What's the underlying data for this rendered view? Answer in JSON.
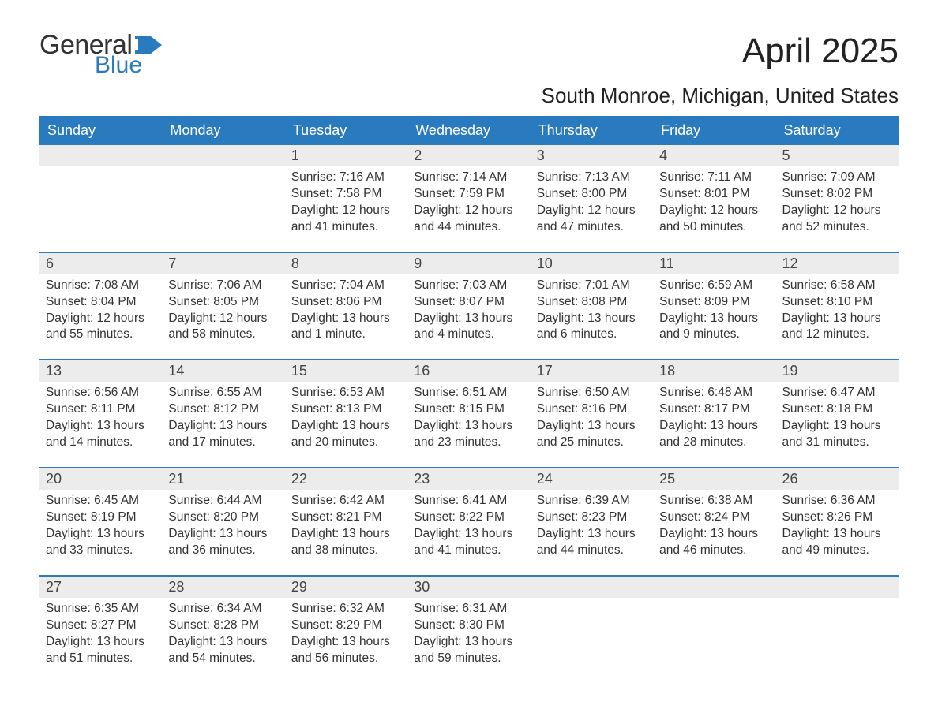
{
  "logo": {
    "text1": "General",
    "text2": "Blue",
    "flag_color": "#2a7ac0"
  },
  "title": "April 2025",
  "location": "South Monroe, Michigan, United States",
  "colors": {
    "header_bg": "#2a7ac0",
    "header_text": "#ffffff",
    "daynum_bg": "#ececec",
    "body_text": "#333333",
    "row_border": "#2a7ac0"
  },
  "fonts": {
    "title_size_pt": 33,
    "location_size_pt": 20,
    "weekday_size_pt": 14,
    "daynum_size_pt": 14,
    "body_size_pt": 12
  },
  "weekdays": [
    "Sunday",
    "Monday",
    "Tuesday",
    "Wednesday",
    "Thursday",
    "Friday",
    "Saturday"
  ],
  "weeks": [
    [
      {
        "day": "",
        "sunrise": "",
        "sunset": "",
        "daylight": ""
      },
      {
        "day": "",
        "sunrise": "",
        "sunset": "",
        "daylight": ""
      },
      {
        "day": "1",
        "sunrise": "Sunrise: 7:16 AM",
        "sunset": "Sunset: 7:58 PM",
        "daylight": "Daylight: 12 hours and 41 minutes."
      },
      {
        "day": "2",
        "sunrise": "Sunrise: 7:14 AM",
        "sunset": "Sunset: 7:59 PM",
        "daylight": "Daylight: 12 hours and 44 minutes."
      },
      {
        "day": "3",
        "sunrise": "Sunrise: 7:13 AM",
        "sunset": "Sunset: 8:00 PM",
        "daylight": "Daylight: 12 hours and 47 minutes."
      },
      {
        "day": "4",
        "sunrise": "Sunrise: 7:11 AM",
        "sunset": "Sunset: 8:01 PM",
        "daylight": "Daylight: 12 hours and 50 minutes."
      },
      {
        "day": "5",
        "sunrise": "Sunrise: 7:09 AM",
        "sunset": "Sunset: 8:02 PM",
        "daylight": "Daylight: 12 hours and 52 minutes."
      }
    ],
    [
      {
        "day": "6",
        "sunrise": "Sunrise: 7:08 AM",
        "sunset": "Sunset: 8:04 PM",
        "daylight": "Daylight: 12 hours and 55 minutes."
      },
      {
        "day": "7",
        "sunrise": "Sunrise: 7:06 AM",
        "sunset": "Sunset: 8:05 PM",
        "daylight": "Daylight: 12 hours and 58 minutes."
      },
      {
        "day": "8",
        "sunrise": "Sunrise: 7:04 AM",
        "sunset": "Sunset: 8:06 PM",
        "daylight": "Daylight: 13 hours and 1 minute."
      },
      {
        "day": "9",
        "sunrise": "Sunrise: 7:03 AM",
        "sunset": "Sunset: 8:07 PM",
        "daylight": "Daylight: 13 hours and 4 minutes."
      },
      {
        "day": "10",
        "sunrise": "Sunrise: 7:01 AM",
        "sunset": "Sunset: 8:08 PM",
        "daylight": "Daylight: 13 hours and 6 minutes."
      },
      {
        "day": "11",
        "sunrise": "Sunrise: 6:59 AM",
        "sunset": "Sunset: 8:09 PM",
        "daylight": "Daylight: 13 hours and 9 minutes."
      },
      {
        "day": "12",
        "sunrise": "Sunrise: 6:58 AM",
        "sunset": "Sunset: 8:10 PM",
        "daylight": "Daylight: 13 hours and 12 minutes."
      }
    ],
    [
      {
        "day": "13",
        "sunrise": "Sunrise: 6:56 AM",
        "sunset": "Sunset: 8:11 PM",
        "daylight": "Daylight: 13 hours and 14 minutes."
      },
      {
        "day": "14",
        "sunrise": "Sunrise: 6:55 AM",
        "sunset": "Sunset: 8:12 PM",
        "daylight": "Daylight: 13 hours and 17 minutes."
      },
      {
        "day": "15",
        "sunrise": "Sunrise: 6:53 AM",
        "sunset": "Sunset: 8:13 PM",
        "daylight": "Daylight: 13 hours and 20 minutes."
      },
      {
        "day": "16",
        "sunrise": "Sunrise: 6:51 AM",
        "sunset": "Sunset: 8:15 PM",
        "daylight": "Daylight: 13 hours and 23 minutes."
      },
      {
        "day": "17",
        "sunrise": "Sunrise: 6:50 AM",
        "sunset": "Sunset: 8:16 PM",
        "daylight": "Daylight: 13 hours and 25 minutes."
      },
      {
        "day": "18",
        "sunrise": "Sunrise: 6:48 AM",
        "sunset": "Sunset: 8:17 PM",
        "daylight": "Daylight: 13 hours and 28 minutes."
      },
      {
        "day": "19",
        "sunrise": "Sunrise: 6:47 AM",
        "sunset": "Sunset: 8:18 PM",
        "daylight": "Daylight: 13 hours and 31 minutes."
      }
    ],
    [
      {
        "day": "20",
        "sunrise": "Sunrise: 6:45 AM",
        "sunset": "Sunset: 8:19 PM",
        "daylight": "Daylight: 13 hours and 33 minutes."
      },
      {
        "day": "21",
        "sunrise": "Sunrise: 6:44 AM",
        "sunset": "Sunset: 8:20 PM",
        "daylight": "Daylight: 13 hours and 36 minutes."
      },
      {
        "day": "22",
        "sunrise": "Sunrise: 6:42 AM",
        "sunset": "Sunset: 8:21 PM",
        "daylight": "Daylight: 13 hours and 38 minutes."
      },
      {
        "day": "23",
        "sunrise": "Sunrise: 6:41 AM",
        "sunset": "Sunset: 8:22 PM",
        "daylight": "Daylight: 13 hours and 41 minutes."
      },
      {
        "day": "24",
        "sunrise": "Sunrise: 6:39 AM",
        "sunset": "Sunset: 8:23 PM",
        "daylight": "Daylight: 13 hours and 44 minutes."
      },
      {
        "day": "25",
        "sunrise": "Sunrise: 6:38 AM",
        "sunset": "Sunset: 8:24 PM",
        "daylight": "Daylight: 13 hours and 46 minutes."
      },
      {
        "day": "26",
        "sunrise": "Sunrise: 6:36 AM",
        "sunset": "Sunset: 8:26 PM",
        "daylight": "Daylight: 13 hours and 49 minutes."
      }
    ],
    [
      {
        "day": "27",
        "sunrise": "Sunrise: 6:35 AM",
        "sunset": "Sunset: 8:27 PM",
        "daylight": "Daylight: 13 hours and 51 minutes."
      },
      {
        "day": "28",
        "sunrise": "Sunrise: 6:34 AM",
        "sunset": "Sunset: 8:28 PM",
        "daylight": "Daylight: 13 hours and 54 minutes."
      },
      {
        "day": "29",
        "sunrise": "Sunrise: 6:32 AM",
        "sunset": "Sunset: 8:29 PM",
        "daylight": "Daylight: 13 hours and 56 minutes."
      },
      {
        "day": "30",
        "sunrise": "Sunrise: 6:31 AM",
        "sunset": "Sunset: 8:30 PM",
        "daylight": "Daylight: 13 hours and 59 minutes."
      },
      {
        "day": "",
        "sunrise": "",
        "sunset": "",
        "daylight": ""
      },
      {
        "day": "",
        "sunrise": "",
        "sunset": "",
        "daylight": ""
      },
      {
        "day": "",
        "sunrise": "",
        "sunset": "",
        "daylight": ""
      }
    ]
  ]
}
